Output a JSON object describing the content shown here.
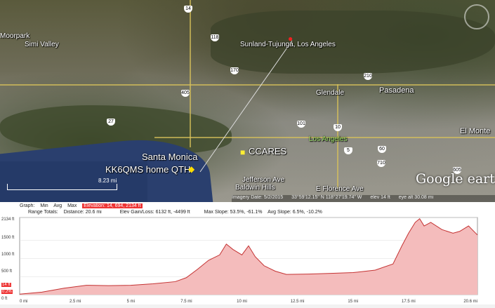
{
  "map": {
    "labels": {
      "moorpark": "Moorpark",
      "simi_valley": "Simi Valley",
      "sunland": "Sunland-Tujunga, Los Angeles",
      "glendale": "Glendale",
      "pasadena": "Pasadena",
      "el_monte": "El Monte",
      "los_angeles": "Los Angeles",
      "santa_monica": "Santa Monica",
      "home_qth": "KK6QMS home QTH",
      "ccares": "CCARES",
      "jefferson": "Jefferson Ave",
      "baldwin": "Baldwin Hills",
      "florence": "E Florence Ave"
    },
    "shields": [
      "118",
      "170",
      "210",
      "405",
      "101",
      "10",
      "5",
      "60",
      "710",
      "605",
      "27",
      "14"
    ],
    "scale_label": "8.23 mi",
    "status": {
      "imagery_date": "Imagery Date: 5/2/2015",
      "coords": "33°59'12.15\" N  118°27'19.74\" W",
      "elev": "elev   14 ft",
      "eye_alt": "eye alt  30.08 mi"
    },
    "logo": "Google earth"
  },
  "profile": {
    "row1": {
      "graph": "Graph:",
      "min": "Min",
      "avg": "Avg",
      "max": "Max",
      "elevation": "Elevation: 14, 694, 2134 ft"
    },
    "row2": {
      "range": "Range Totals:",
      "distance": "Distance: 20.6 mi",
      "gain": "Elev Gain/Loss: 6132 ft, -4499 ft",
      "max_slope": "Max Slope: 53.5%, -61.1%",
      "avg_slope": "Avg Slope: 6.5%, -10.2%"
    },
    "y_ticks": [
      "2134 ft",
      "1500 ft",
      "1000 ft",
      "500 ft",
      "14 ft",
      "0 ft"
    ],
    "cursor_value": "14 ft",
    "cursor_slope": "0.2%"
  },
  "chart_data": {
    "type": "area",
    "xlabel": "",
    "ylabel": "",
    "x_ticks": [
      "0 mi",
      "2.5 mi",
      "5 mi",
      "7.5 mi",
      "10 mi",
      "12.5 mi",
      "15 mi",
      "17.5 mi",
      "20.6 mi"
    ],
    "xlim": [
      0,
      20.6
    ],
    "ylim": [
      0,
      2134
    ],
    "x": [
      0,
      1,
      2,
      3,
      4,
      5,
      6,
      7,
      7.5,
      8,
      8.5,
      9,
      9.3,
      9.6,
      10,
      10.3,
      10.6,
      11,
      11.5,
      12,
      13,
      14,
      15,
      16,
      16.8,
      17.2,
      17.5,
      17.8,
      18,
      18.2,
      18.5,
      19,
      19.5,
      19.8,
      20.2,
      20.6
    ],
    "y": [
      14,
      70,
      180,
      260,
      250,
      260,
      300,
      360,
      470,
      700,
      950,
      1100,
      1400,
      1250,
      1100,
      1350,
      1050,
      800,
      650,
      560,
      570,
      590,
      610,
      680,
      850,
      1350,
      1700,
      2000,
      2100,
      1900,
      2000,
      1800,
      1700,
      1750,
      1900,
      1650
    ]
  },
  "colors": {
    "fill": "#f4bcbc",
    "line": "#c43232",
    "highlight": "#e33333"
  }
}
